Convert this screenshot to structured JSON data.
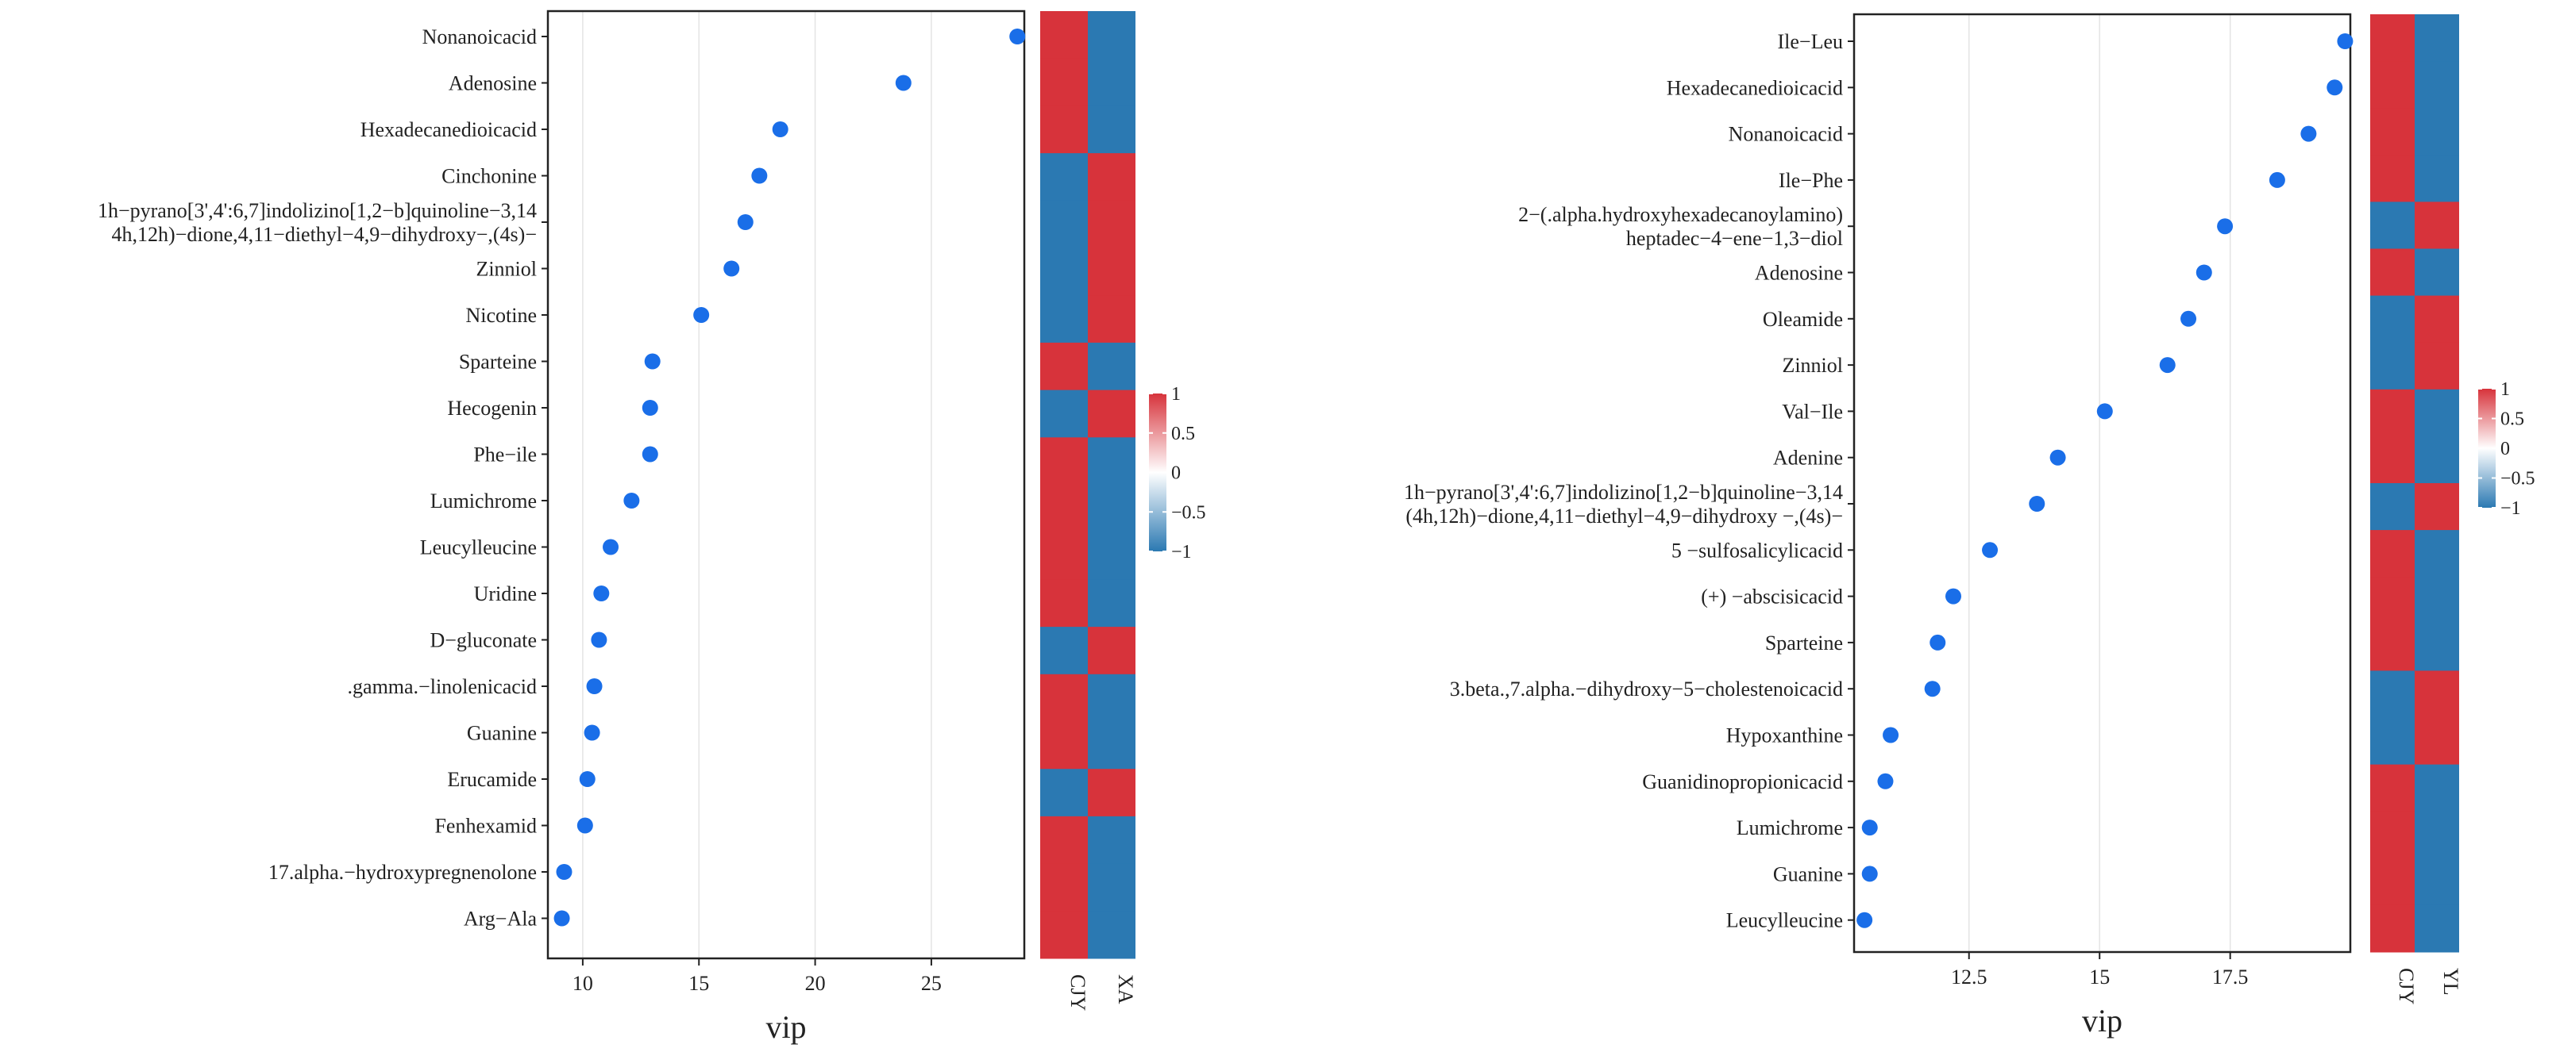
{
  "colors": {
    "point": "#1a6ee8",
    "red": "#d7333b",
    "blue": "#2b79b2",
    "white": "#ffffff",
    "grid": "#e4e4e4",
    "axis": "#222222"
  },
  "chart_data": [
    {
      "type": "scatter",
      "title": "",
      "xlabel": "vip",
      "ylabel": "",
      "xlim": [
        8.5,
        29.0
      ],
      "xticks": [
        10,
        15,
        20,
        25
      ],
      "xtick_labels": [
        "10",
        "15",
        "20",
        "25"
      ],
      "categories": [
        [
          "Nonanoicacid"
        ],
        [
          "Adenosine"
        ],
        [
          "Hexadecanedioicacid"
        ],
        [
          "Cinchonine"
        ],
        [
          "1h−pyrano[3',4':6,7]indolizino[1,2−b]quinoline−3,14",
          "4h,12h)−dione,4,11−diethyl−4,9−dihydroxy−,(4s)−"
        ],
        [
          "Zinniol"
        ],
        [
          "Nicotine"
        ],
        [
          "Sparteine"
        ],
        [
          "Hecogenin"
        ],
        [
          "Phe−ile"
        ],
        [
          "Lumichrome"
        ],
        [
          "Leucylleucine"
        ],
        [
          "Uridine"
        ],
        [
          "D−gluconate"
        ],
        [
          ".gamma.−linolenicacid"
        ],
        [
          "Guanine"
        ],
        [
          "Erucamide"
        ],
        [
          "Fenhexamid"
        ],
        [
          "17.alpha.−hydroxypregnenolone"
        ],
        [
          "Arg−Ala"
        ]
      ],
      "values": [
        28.7,
        23.8,
        18.5,
        17.6,
        17.0,
        16.4,
        15.1,
        13.0,
        12.9,
        12.9,
        12.1,
        11.2,
        10.8,
        10.7,
        10.5,
        10.4,
        10.2,
        10.1,
        9.2,
        9.1
      ],
      "heatmap": {
        "columns": [
          "CJY",
          "XA"
        ],
        "values": [
          [
            1,
            -1
          ],
          [
            1,
            -1
          ],
          [
            1,
            -1
          ],
          [
            -1,
            1
          ],
          [
            -1,
            1
          ],
          [
            -1,
            1
          ],
          [
            -1,
            1
          ],
          [
            1,
            -1
          ],
          [
            -1,
            1
          ],
          [
            1,
            -1
          ],
          [
            1,
            -1
          ],
          [
            1,
            -1
          ],
          [
            1,
            -1
          ],
          [
            -1,
            1
          ],
          [
            1,
            -1
          ],
          [
            1,
            -1
          ],
          [
            -1,
            1
          ],
          [
            1,
            -1
          ],
          [
            1,
            -1
          ],
          [
            1,
            -1
          ]
        ]
      },
      "legend": {
        "ticks": [
          1,
          0.5,
          0,
          -0.5,
          -1
        ],
        "labels": [
          "1",
          "0.5",
          "0",
          "−0.5",
          "−1"
        ]
      }
    },
    {
      "type": "scatter",
      "title": "",
      "xlabel": "vip",
      "ylabel": "",
      "xlim": [
        10.3,
        19.8
      ],
      "xticks": [
        12.5,
        15,
        17.5
      ],
      "xtick_labels": [
        "12.5",
        "15",
        "17.5"
      ],
      "categories": [
        [
          "Ile−Leu"
        ],
        [
          "Hexadecanedioicacid"
        ],
        [
          "Nonanoicacid"
        ],
        [
          "Ile−Phe"
        ],
        [
          "2−(.alpha.hydroxyhexadecanoylamino)",
          "heptadec−4−ene−1,3−diol"
        ],
        [
          "Adenosine"
        ],
        [
          "Oleamide"
        ],
        [
          "Zinniol"
        ],
        [
          "Val−Ile"
        ],
        [
          "Adenine"
        ],
        [
          "1h−pyrano[3',4':6,7]indolizino[1,2−b]quinoline−3,14",
          "(4h,12h)−dione,4,11−diethyl−4,9−dihydroxy −,(4s)−"
        ],
        [
          "5 −sulfosalicylicacid"
        ],
        [
          "(+) −abscisicacid"
        ],
        [
          "Sparteine"
        ],
        [
          "3.beta.,7.alpha.−dihydroxy−5−cholestenoicacid"
        ],
        [
          "Hypoxanthine"
        ],
        [
          "Guanidinopropionicacid"
        ],
        [
          "Lumichrome"
        ],
        [
          "Guanine"
        ],
        [
          "Leucylleucine"
        ]
      ],
      "values": [
        19.7,
        19.5,
        19.0,
        18.4,
        17.4,
        17.0,
        16.7,
        16.3,
        15.1,
        14.2,
        13.8,
        12.9,
        12.2,
        11.9,
        11.8,
        11.0,
        10.9,
        10.6,
        10.6,
        10.5
      ],
      "heatmap": {
        "columns": [
          "CJY",
          "YL"
        ],
        "values": [
          [
            1,
            -1
          ],
          [
            1,
            -1
          ],
          [
            1,
            -1
          ],
          [
            1,
            -1
          ],
          [
            -1,
            1
          ],
          [
            1,
            -1
          ],
          [
            -1,
            1
          ],
          [
            -1,
            1
          ],
          [
            1,
            -1
          ],
          [
            1,
            -1
          ],
          [
            -1,
            1
          ],
          [
            1,
            -1
          ],
          [
            1,
            -1
          ],
          [
            1,
            -1
          ],
          [
            -1,
            1
          ],
          [
            -1,
            1
          ],
          [
            1,
            -1
          ],
          [
            1,
            -1
          ],
          [
            1,
            -1
          ],
          [
            1,
            -1
          ]
        ]
      },
      "legend": {
        "ticks": [
          1,
          0.5,
          0,
          -0.5,
          -1
        ],
        "labels": [
          "1",
          "0.5",
          "0",
          "−0.5",
          "−1"
        ]
      }
    }
  ]
}
